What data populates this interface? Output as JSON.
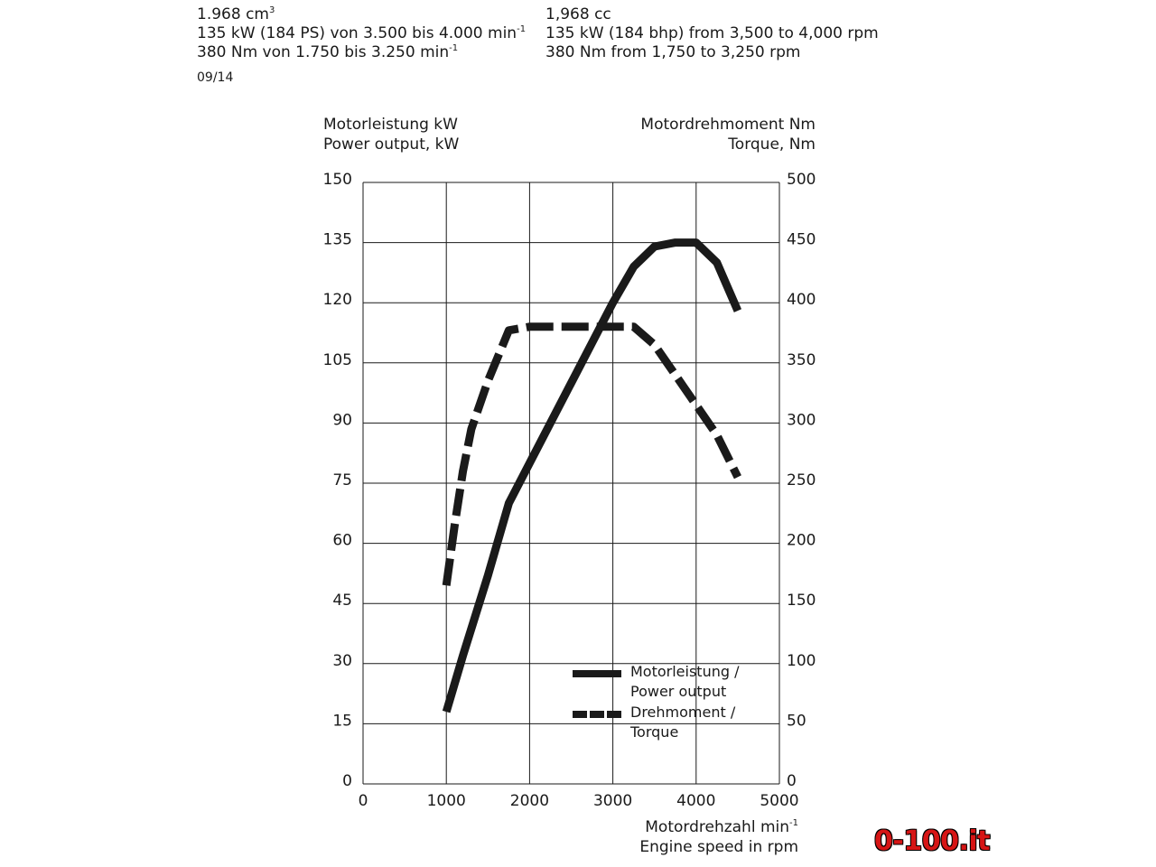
{
  "spec_de": {
    "line1": "1.968 cm",
    "line1_sup": "3",
    "line2": "135 kW (184 PS) von 3.500 bis 4.000 min",
    "line2_sup": "-1",
    "line3": "380 Nm von 1.750 bis 3.250 min",
    "line3_sup": "-1"
  },
  "spec_en": {
    "line1": "1,968 cc",
    "line2": "135 kW (184 bhp) from 3,500 to 4,000 rpm",
    "line3": "380 Nm from 1,750 to 3,250 rpm"
  },
  "date": "09/14",
  "logo": "0-100.it",
  "chart_data": {
    "type": "line",
    "left_axis_label": [
      "Motorleistung kW",
      "Power output, kW"
    ],
    "right_axis_label": [
      "Motordrehmoment Nm",
      "Torque, Nm"
    ],
    "x_axis_label": [
      "Motordrehzahl min",
      "Engine speed in rpm"
    ],
    "x_axis_label_sup": "-1",
    "xlim": [
      0,
      5000
    ],
    "ylim_left": [
      0,
      150
    ],
    "ylim_right": [
      0,
      500
    ],
    "x_ticks": [
      "0",
      "1000",
      "2000",
      "3000",
      "4000",
      "5000"
    ],
    "y_left_ticks": [
      "0",
      "15",
      "30",
      "45",
      "60",
      "75",
      "90",
      "105",
      "120",
      "135",
      "150"
    ],
    "y_right_ticks": [
      "0",
      "50",
      "100",
      "150",
      "200",
      "250",
      "300",
      "350",
      "400",
      "450",
      "500"
    ],
    "grid": true,
    "legend_position": "bottom-right",
    "series": [
      {
        "name": "Motorleistung /\nPower output",
        "axis": "left",
        "style": "solid",
        "x": [
          1000,
          1200,
          1500,
          1750,
          2000,
          2500,
          3000,
          3250,
          3500,
          3750,
          4000,
          4250,
          4500
        ],
        "y": [
          18,
          32,
          52,
          70,
          80,
          100,
          120,
          129,
          134,
          135,
          135,
          130,
          118
        ]
      },
      {
        "name": "Drehmoment /\nTorque",
        "axis": "right",
        "style": "dashed",
        "x": [
          1000,
          1100,
          1200,
          1300,
          1500,
          1750,
          2000,
          2500,
          3000,
          3250,
          3500,
          3750,
          4000,
          4250,
          4500
        ],
        "y": [
          165,
          215,
          260,
          295,
          335,
          377,
          380,
          380,
          380,
          380,
          365,
          340,
          315,
          290,
          255
        ]
      }
    ]
  }
}
